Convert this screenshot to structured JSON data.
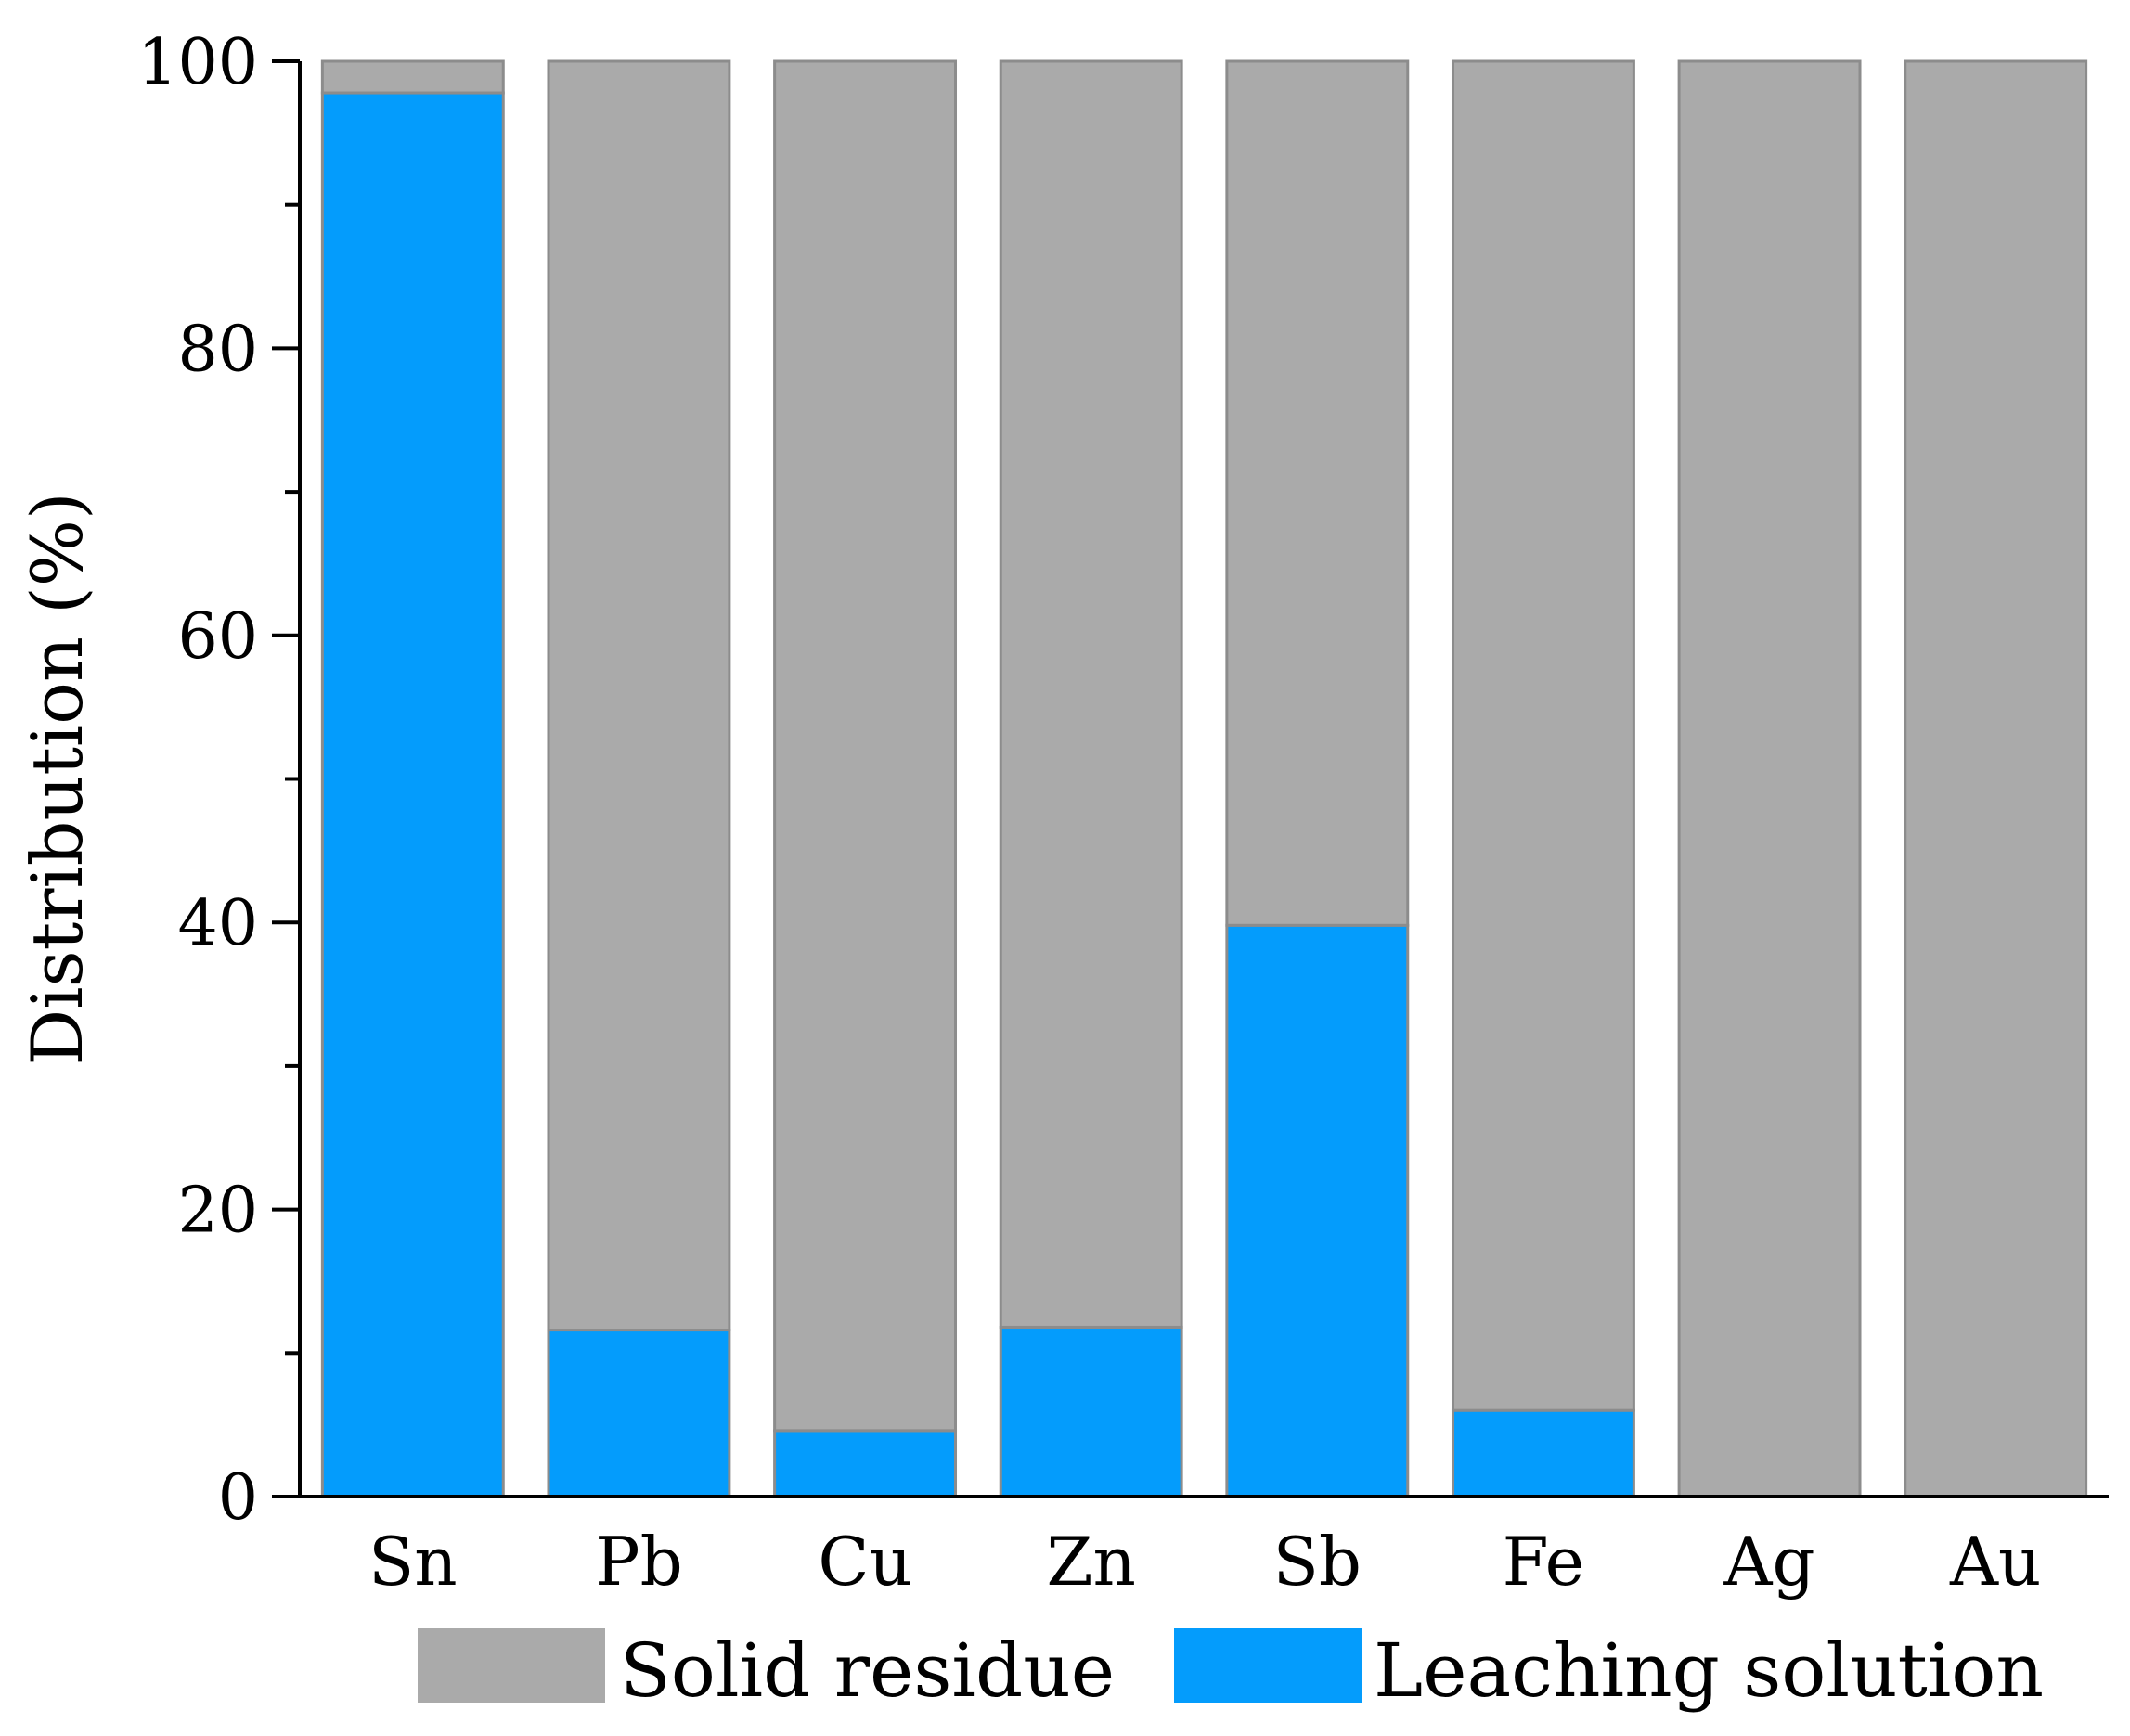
{
  "chart_data": {
    "type": "bar",
    "stacked": true,
    "categories": [
      "Sn",
      "Pb",
      "Cu",
      "Zn",
      "Sb",
      "Fe",
      "Ag",
      "Au"
    ],
    "series": [
      {
        "name": "Leaching solution",
        "color": "#049cfc",
        "values": [
          97.8,
          11.6,
          4.6,
          11.8,
          39.8,
          6.0,
          0,
          0
        ]
      },
      {
        "name": "Solid residue",
        "color": "#aaaaaa",
        "values": [
          2.2,
          88.4,
          95.4,
          88.2,
          60.2,
          94.0,
          100,
          100
        ]
      }
    ],
    "ylabel": "Distribution (%)",
    "xlabel": "",
    "ylim": [
      0,
      100
    ],
    "yticks": [
      0,
      20,
      40,
      60,
      80,
      100
    ],
    "grid": false,
    "legend_position": "bottom",
    "legend_order": [
      "Solid residue",
      "Leaching solution"
    ]
  }
}
